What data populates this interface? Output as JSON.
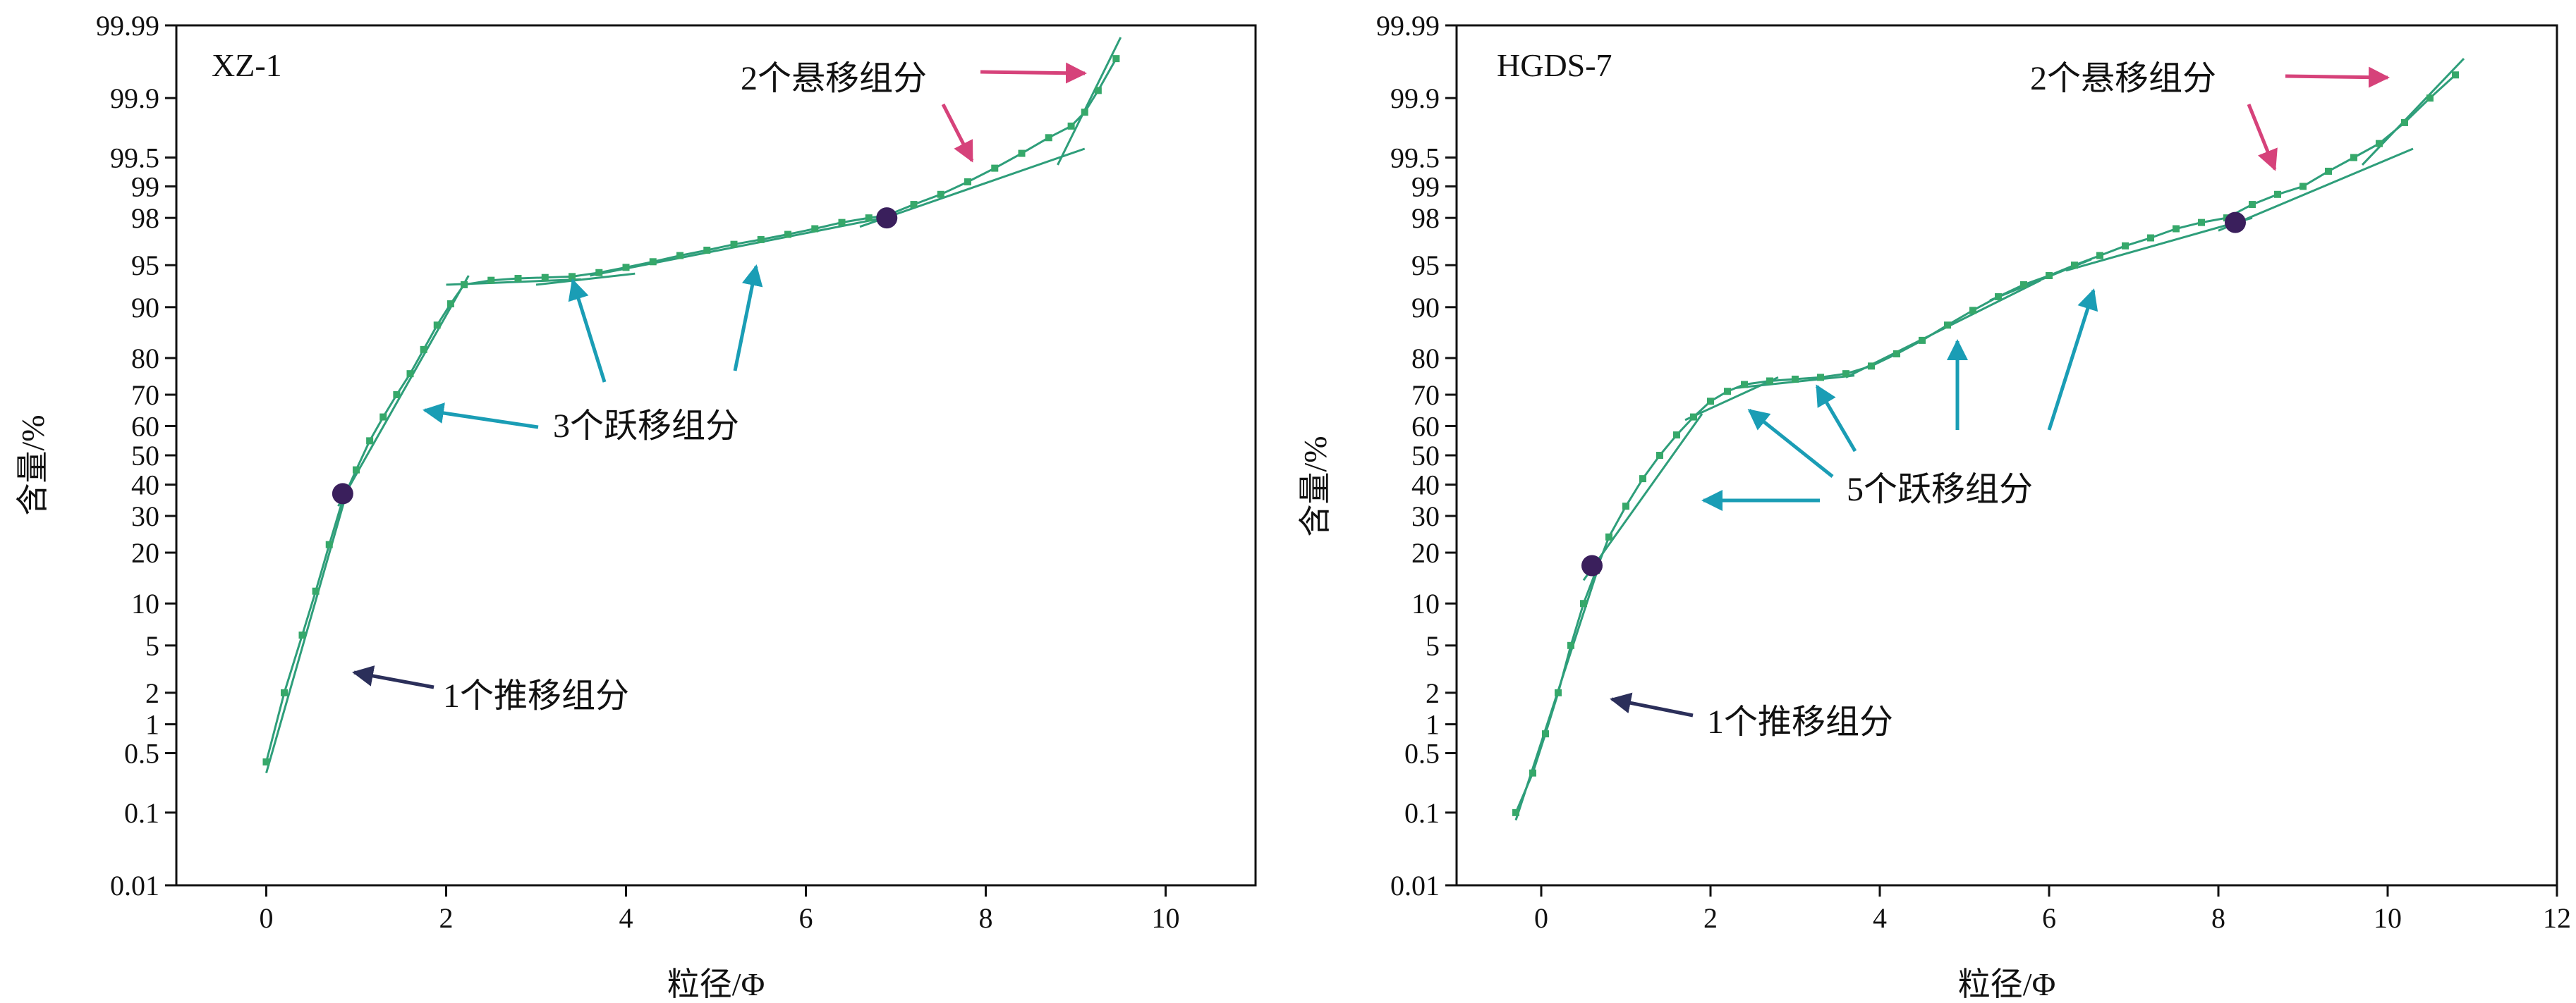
{
  "colors": {
    "curve": "#2e9e7a",
    "marker": "#36a86a",
    "mean_point": "#3a1f5c",
    "arrow_suspension": "#d6427a",
    "arrow_saltation": "#1a9db5",
    "arrow_traction": "#2b2f5a",
    "axis": "#111111"
  },
  "chart_data": [
    {
      "type": "line",
      "panel_label": "XZ-1",
      "xlabel": "粒径/Φ",
      "ylabel": "含量/%",
      "xlim": [
        -1,
        11
      ],
      "xticks": [
        0,
        2,
        4,
        6,
        8,
        10
      ],
      "yscale": "probability",
      "ylim": [
        0.01,
        99.99
      ],
      "yticks": [
        0.01,
        0.1,
        0.5,
        1,
        2,
        5,
        10,
        20,
        30,
        40,
        50,
        60,
        70,
        80,
        90,
        95,
        98,
        99,
        99.5,
        99.9,
        99.99
      ],
      "ytick_labels": [
        "0.01",
        "0.1",
        "0.5",
        "1",
        "2",
        "5",
        "10",
        "20",
        "30",
        "40",
        "50",
        "60",
        "70",
        "80",
        "90",
        "95",
        "98",
        "99",
        "99.5",
        "99.9",
        "99.99"
      ],
      "series": [
        {
          "x": [
            0.0,
            0.2,
            0.4,
            0.55,
            0.7,
            0.85,
            1.0,
            1.15,
            1.3,
            1.45,
            1.6,
            1.75,
            1.9,
            2.05,
            2.2,
            2.5,
            2.8,
            3.1,
            3.4,
            3.7,
            4.0,
            4.3,
            4.6,
            4.9,
            5.2,
            5.5,
            5.8,
            6.1,
            6.4,
            6.7,
            6.9,
            7.2,
            7.5,
            7.8,
            8.1,
            8.4,
            8.7,
            8.95,
            9.1,
            9.25,
            9.45
          ],
          "y": [
            0.4,
            2.0,
            6.0,
            12.0,
            22.0,
            35.0,
            45.0,
            55.0,
            63.0,
            70.0,
            76.0,
            82.0,
            87.0,
            90.5,
            93.0,
            93.5,
            93.7,
            93.8,
            93.9,
            94.3,
            94.8,
            95.3,
            95.8,
            96.2,
            96.6,
            96.9,
            97.2,
            97.5,
            97.8,
            98.0,
            98.1,
            98.5,
            98.8,
            99.1,
            99.35,
            99.55,
            99.7,
            99.78,
            99.85,
            99.92,
            99.97
          ]
        }
      ],
      "mean_points": [
        {
          "x": 0.85,
          "y": 37.0
        },
        {
          "x": 6.9,
          "y": 98.0
        }
      ],
      "fit_segments": [
        {
          "x": [
            0.0,
            0.9
          ],
          "y": [
            0.3,
            38.0
          ]
        },
        {
          "x": [
            0.8,
            2.25
          ],
          "y": [
            33.0,
            94.0
          ]
        },
        {
          "x": [
            2.0,
            3.5
          ],
          "y": [
            93.0,
            93.6
          ]
        },
        {
          "x": [
            3.0,
            4.1
          ],
          "y": [
            93.0,
            94.2
          ]
        },
        {
          "x": [
            3.6,
            7.0
          ],
          "y": [
            94.0,
            98.1
          ]
        },
        {
          "x": [
            6.6,
            9.1
          ],
          "y": [
            97.6,
            99.6
          ]
        },
        {
          "x": [
            8.8,
            9.5
          ],
          "y": [
            99.4,
            99.985
          ]
        }
      ],
      "annotations": [
        {
          "text": "2个悬移组分",
          "class": "suspension"
        },
        {
          "text": "3个跃移组分",
          "class": "saltation"
        },
        {
          "text": "1个推移组分",
          "class": "traction"
        }
      ]
    },
    {
      "type": "line",
      "panel_label": "HGDS-7",
      "xlabel": "粒径/Φ",
      "ylabel": "含量/%",
      "xlim": [
        -1,
        12
      ],
      "xticks": [
        0,
        2,
        4,
        6,
        8,
        10,
        12
      ],
      "yscale": "probability",
      "ylim": [
        0.01,
        99.99
      ],
      "yticks": [
        0.01,
        0.1,
        0.5,
        1,
        2,
        5,
        10,
        20,
        30,
        40,
        50,
        60,
        70,
        80,
        90,
        95,
        98,
        99,
        99.5,
        99.9,
        99.99
      ],
      "ytick_labels": [
        "0.01",
        "0.1",
        "0.5",
        "1",
        "2",
        "5",
        "10",
        "20",
        "30",
        "40",
        "50",
        "60",
        "70",
        "80",
        "90",
        "95",
        "98",
        "99",
        "99.5",
        "99.9",
        "99.99"
      ],
      "series": [
        {
          "x": [
            -0.3,
            -0.1,
            0.05,
            0.2,
            0.35,
            0.5,
            0.65,
            0.8,
            1.0,
            1.2,
            1.4,
            1.6,
            1.8,
            2.0,
            2.2,
            2.4,
            2.7,
            3.0,
            3.3,
            3.6,
            3.9,
            4.2,
            4.5,
            4.8,
            5.1,
            5.4,
            5.7,
            6.0,
            6.3,
            6.6,
            6.9,
            7.2,
            7.5,
            7.8,
            8.1,
            8.4,
            8.7,
            9.0,
            9.3,
            9.6,
            9.9,
            10.2,
            10.5,
            10.8
          ],
          "y": [
            0.1,
            0.3,
            0.8,
            2.0,
            5.0,
            10.0,
            16.0,
            24.0,
            33.0,
            42.0,
            50.0,
            57.0,
            63.0,
            68.0,
            71.0,
            73.0,
            74.0,
            74.5,
            75.0,
            76.0,
            78.0,
            81.0,
            84.0,
            87.0,
            89.5,
            91.5,
            93.0,
            94.0,
            95.0,
            95.8,
            96.5,
            97.0,
            97.5,
            97.8,
            98.0,
            98.5,
            98.8,
            99.0,
            99.3,
            99.5,
            99.65,
            99.8,
            99.9,
            99.95
          ]
        }
      ],
      "mean_points": [
        {
          "x": 0.6,
          "y": 17.0
        },
        {
          "x": 8.2,
          "y": 97.8
        }
      ],
      "fit_segments": [
        {
          "x": [
            -0.3,
            0.7
          ],
          "y": [
            0.08,
            18.0
          ]
        },
        {
          "x": [
            0.5,
            1.9
          ],
          "y": [
            14.0,
            64.0
          ]
        },
        {
          "x": [
            1.7,
            2.8
          ],
          "y": [
            62.0,
            75.0
          ]
        },
        {
          "x": [
            2.3,
            3.7
          ],
          "y": [
            72.0,
            75.5
          ]
        },
        {
          "x": [
            3.6,
            5.9
          ],
          "y": [
            75.0,
            93.5
          ]
        },
        {
          "x": [
            5.3,
            6.5
          ],
          "y": [
            91.0,
            95.5
          ]
        },
        {
          "x": [
            6.2,
            8.4
          ],
          "y": [
            94.5,
            98.0
          ]
        },
        {
          "x": [
            8.0,
            10.3
          ],
          "y": [
            97.4,
            99.6
          ]
        },
        {
          "x": [
            9.7,
            10.9
          ],
          "y": [
            99.4,
            99.97
          ]
        }
      ],
      "annotations": [
        {
          "text": "2个悬移组分",
          "class": "suspension"
        },
        {
          "text": "5个跃移组分",
          "class": "saltation"
        },
        {
          "text": "1个推移组分",
          "class": "traction"
        }
      ]
    }
  ]
}
